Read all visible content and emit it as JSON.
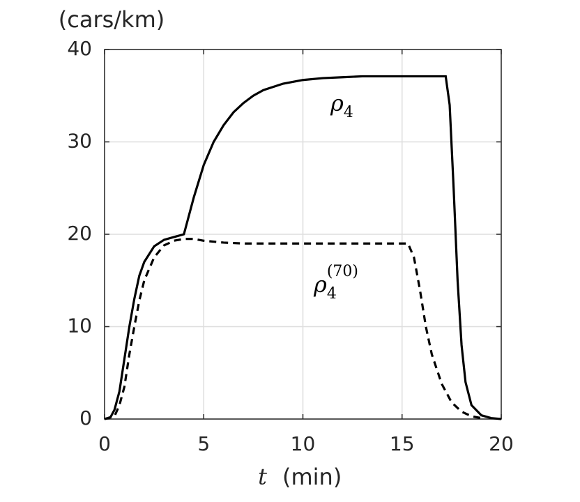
{
  "chart_data": {
    "type": "line",
    "y_label": "(cars/km)",
    "x_label_var": "t",
    "x_label_unit": "(min)",
    "xlim": [
      0,
      20
    ],
    "xticks": [
      0,
      5,
      10,
      15,
      20
    ],
    "ylim": [
      0,
      40
    ],
    "yticks": [
      0,
      10,
      20,
      30,
      40
    ],
    "grid": true,
    "series": [
      {
        "name": {
          "symbol": "ρ",
          "sub": "4"
        },
        "color": "#000000",
        "dash": "solid",
        "x": [
          0,
          0.3,
          0.5,
          0.75,
          1.0,
          1.25,
          1.5,
          1.75,
          2.0,
          2.5,
          3.0,
          3.5,
          4.0,
          4.5,
          5.0,
          5.5,
          6,
          6.5,
          7,
          7.5,
          8,
          9,
          10,
          11,
          12,
          13,
          14,
          15,
          16,
          17,
          17.2,
          17.4,
          17.6,
          17.8,
          18,
          18.2,
          18.5,
          19,
          19.5,
          20
        ],
        "values": [
          0,
          0.2,
          1,
          3,
          6.5,
          10,
          13,
          15.5,
          17,
          18.7,
          19.4,
          19.7,
          20,
          24,
          27.5,
          30,
          31.8,
          33.2,
          34.2,
          35,
          35.6,
          36.3,
          36.7,
          36.9,
          37,
          37.1,
          37.1,
          37.1,
          37.1,
          37.1,
          37.1,
          34,
          25,
          15,
          8,
          4,
          1.5,
          0.4,
          0.1,
          0
        ]
      },
      {
        "name": {
          "symbol": "ρ",
          "sub": "4",
          "sup": "(70)"
        },
        "color": "#000000",
        "dash": "dashed",
        "x": [
          0,
          0.5,
          0.75,
          1,
          1.25,
          1.5,
          1.75,
          2,
          2.5,
          3,
          3.5,
          4,
          4.5,
          5,
          6,
          7,
          8,
          10,
          12,
          14,
          15,
          15.3,
          15.6,
          15.9,
          16.2,
          16.5,
          17,
          17.5,
          18,
          18.5,
          19
        ],
        "values": [
          0,
          0.3,
          1.5,
          3.5,
          7,
          10,
          12.8,
          15,
          17.5,
          18.8,
          19.3,
          19.5,
          19.5,
          19.3,
          19.1,
          19,
          19,
          19,
          19,
          19,
          19,
          19,
          17.5,
          14,
          10,
          7,
          3.8,
          1.8,
          0.8,
          0.3,
          0.1
        ]
      }
    ]
  }
}
